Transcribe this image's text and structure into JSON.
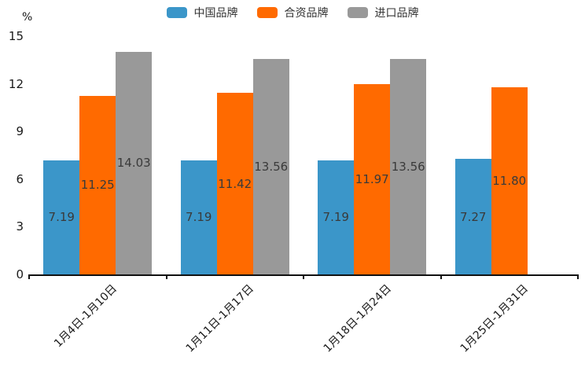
{
  "chart_data": {
    "type": "bar",
    "title": "",
    "ylabel": "%",
    "xlabel": "",
    "categories": [
      "1月4日-1月10日",
      "1月11日-1月17日",
      "1月18日-1月24日",
      "1月25日-1月31日"
    ],
    "series": [
      {
        "name": "中国品牌",
        "color": "#3B96C9",
        "values": [
          7.19,
          7.19,
          7.19,
          7.27
        ],
        "labels": [
          "7.19",
          "7.19",
          "7.19",
          "7.27"
        ]
      },
      {
        "name": "合资品牌",
        "color": "#FF6A00",
        "values": [
          11.25,
          11.42,
          11.97,
          11.8
        ],
        "labels": [
          "11.25",
          "11.42",
          "11.97",
          "11.80"
        ]
      },
      {
        "name": "进口品牌",
        "color": "#999999",
        "values": [
          14.03,
          13.56,
          13.56,
          null
        ],
        "labels": [
          "14.03",
          "13.56",
          "13.56",
          null
        ]
      }
    ],
    "ylim": [
      0,
      15
    ],
    "yticks": [
      0,
      3,
      6,
      9,
      12,
      15
    ],
    "legend_position": "top",
    "grid": false,
    "bar_label_color": "#3a3a3a",
    "axis_color": "#111111"
  }
}
